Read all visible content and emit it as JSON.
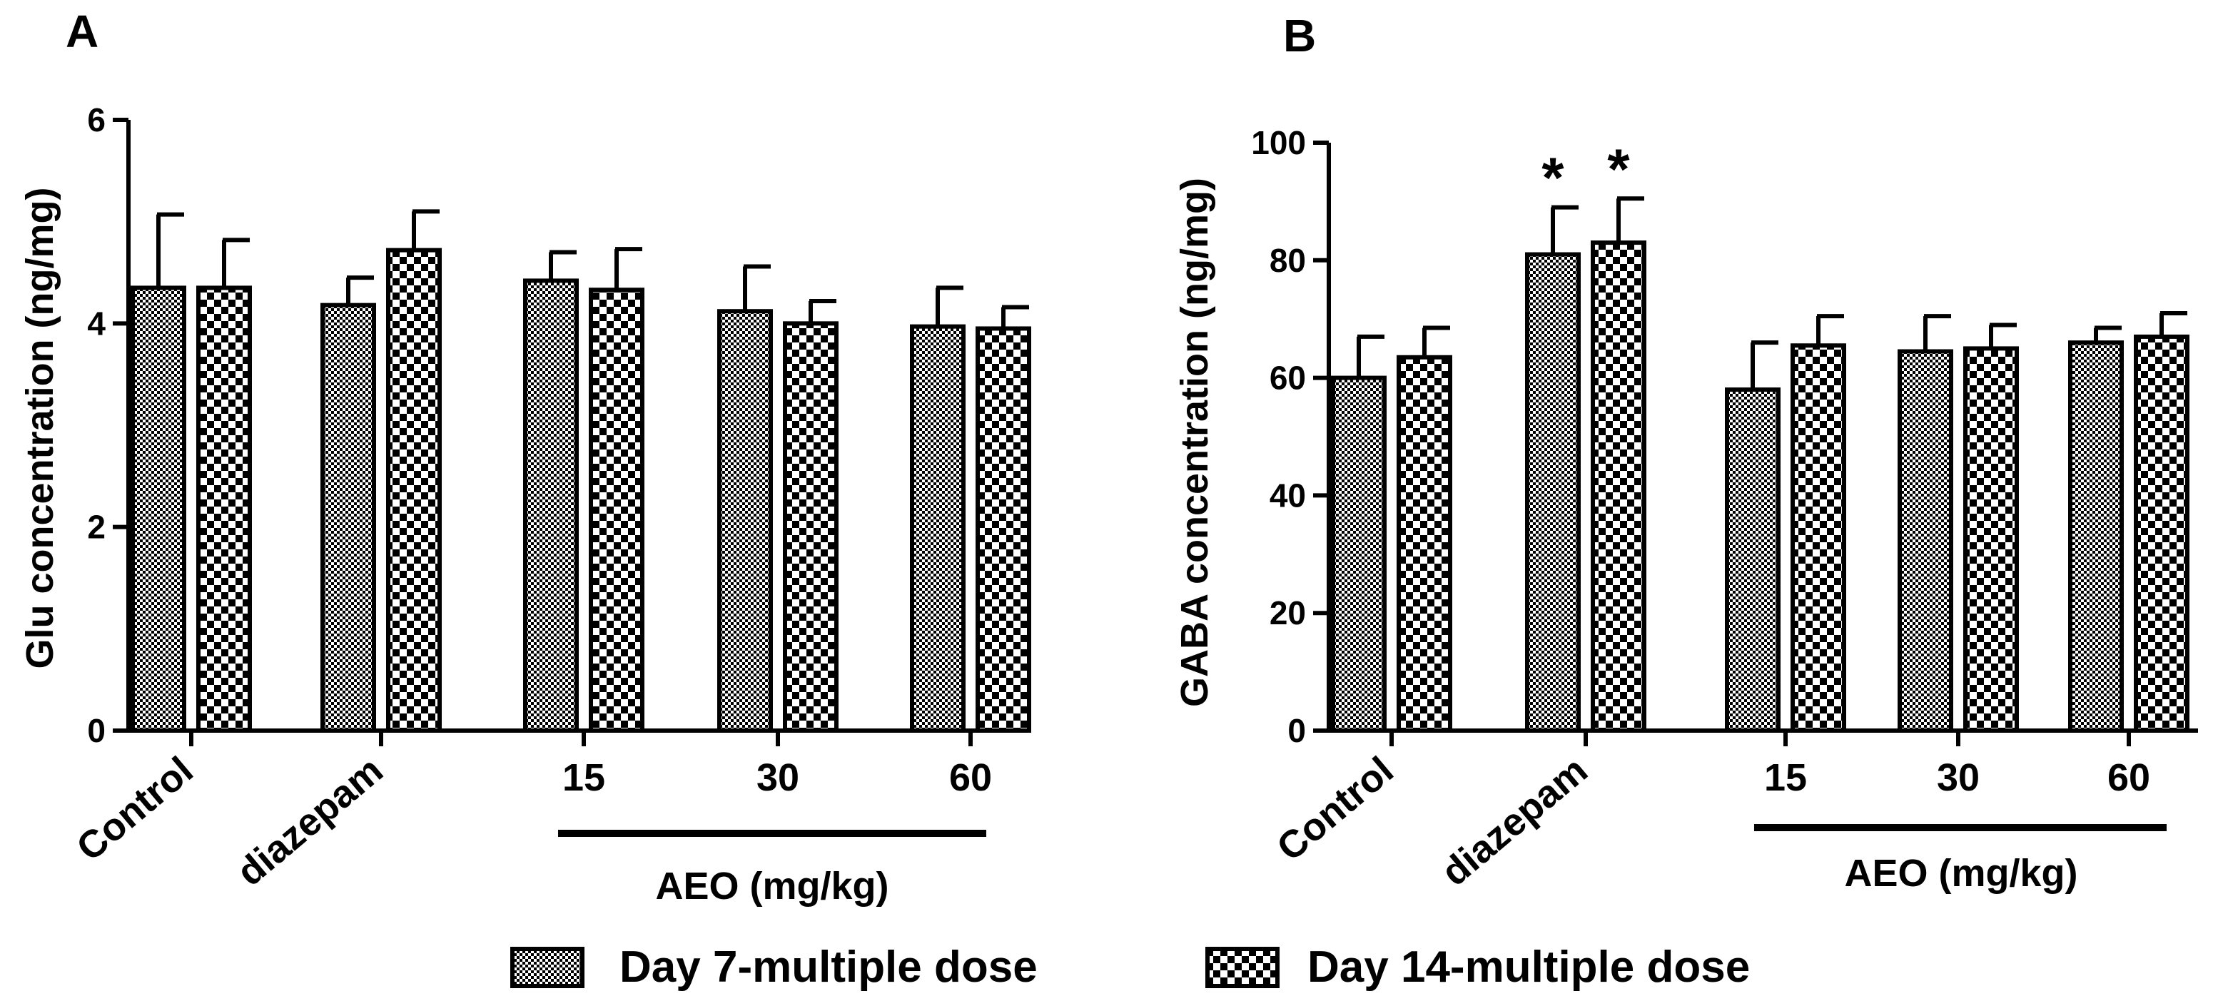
{
  "figure": {
    "legend": [
      {
        "label": "Day 7-multiple dose",
        "pattern": "dots"
      },
      {
        "label": "Day 14-multiple dose",
        "pattern": "checks"
      }
    ]
  },
  "chart_data": [
    {
      "type": "bar",
      "panel": "A",
      "ylabel": "Glu concentration (ng/mg)",
      "xlabel": "",
      "group_label": "AEO (mg/kg)",
      "categories": [
        "Control",
        "diazepam",
        "15",
        "30",
        "60"
      ],
      "ylim": [
        0,
        6
      ],
      "yticks": [
        "0",
        "2",
        "4",
        "6"
      ],
      "series": [
        {
          "name": "Day 7-multiple dose",
          "values": [
            4.35,
            4.18,
            4.42,
            4.12,
            3.97
          ],
          "errors": [
            0.72,
            0.27,
            0.28,
            0.44,
            0.38
          ]
        },
        {
          "name": "Day 14-multiple dose",
          "values": [
            4.35,
            4.72,
            4.33,
            4.0,
            3.95
          ],
          "errors": [
            0.47,
            0.38,
            0.4,
            0.22,
            0.21
          ]
        }
      ],
      "annotations": []
    },
    {
      "type": "bar",
      "panel": "B",
      "ylabel": "GABA concentration (ng/mg)",
      "xlabel": "",
      "group_label": "AEO (mg/kg)",
      "categories": [
        "Control",
        "diazepam",
        "15",
        "30",
        "60"
      ],
      "ylim": [
        0,
        100
      ],
      "yticks": [
        "0",
        "20",
        "40",
        "60",
        "80",
        "100"
      ],
      "series": [
        {
          "name": "Day 7-multiple dose",
          "values": [
            60,
            81,
            58,
            64.5,
            66
          ],
          "errors": [
            7,
            8,
            8,
            6,
            2.5
          ]
        },
        {
          "name": "Day 14-multiple dose",
          "values": [
            63.5,
            83,
            65.5,
            65,
            67
          ],
          "errors": [
            5,
            7.5,
            5,
            4,
            4
          ]
        }
      ],
      "annotations": [
        {
          "category": "diazepam",
          "series": 0,
          "text": "*"
        },
        {
          "category": "diazepam",
          "series": 1,
          "text": "*"
        }
      ]
    }
  ]
}
